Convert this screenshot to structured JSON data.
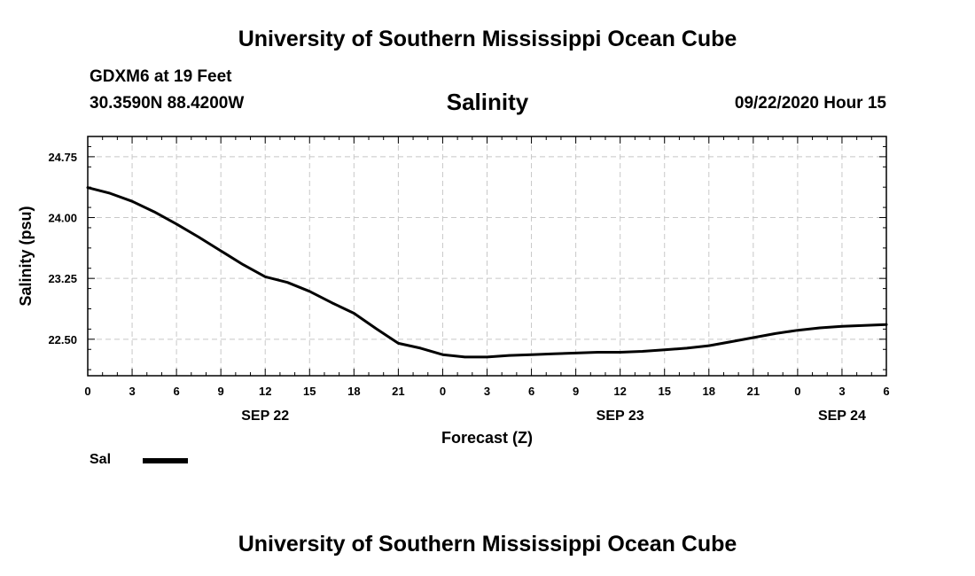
{
  "header": {
    "top_title": "University of Southern Mississippi Ocean Cube",
    "station": "GDXM6 at 19 Feet",
    "coords": "30.3590N 88.4200W",
    "chart_title": "Salinity",
    "timestamp": "09/22/2020 Hour 15"
  },
  "footer": {
    "bottom_title": "University of Southern Mississippi Ocean Cube"
  },
  "legend": {
    "label": "Sal"
  },
  "chart_data": {
    "type": "line",
    "title": "Salinity",
    "xlabel": "Forecast (Z)",
    "ylabel": "Salinity (psu)",
    "x_unit": "forecast hours from 0Z SEP 22",
    "xlim": [
      0,
      54
    ],
    "ylim": [
      22.05,
      25.0
    ],
    "x_ticks": [
      {
        "x": 0,
        "label": "0"
      },
      {
        "x": 3,
        "label": "3"
      },
      {
        "x": 6,
        "label": "6"
      },
      {
        "x": 9,
        "label": "9"
      },
      {
        "x": 12,
        "label": "12"
      },
      {
        "x": 15,
        "label": "15"
      },
      {
        "x": 18,
        "label": "18"
      },
      {
        "x": 21,
        "label": "21"
      },
      {
        "x": 24,
        "label": "0"
      },
      {
        "x": 27,
        "label": "3"
      },
      {
        "x": 30,
        "label": "6"
      },
      {
        "x": 33,
        "label": "9"
      },
      {
        "x": 36,
        "label": "12"
      },
      {
        "x": 39,
        "label": "15"
      },
      {
        "x": 42,
        "label": "18"
      },
      {
        "x": 45,
        "label": "21"
      },
      {
        "x": 48,
        "label": "0"
      },
      {
        "x": 51,
        "label": "3"
      },
      {
        "x": 54,
        "label": "6"
      }
    ],
    "date_labels": [
      {
        "x": 12,
        "label": "SEP 22"
      },
      {
        "x": 36,
        "label": "SEP 23"
      },
      {
        "x": 51,
        "label": "SEP 24"
      }
    ],
    "y_ticks": [
      {
        "y": 22.5,
        "label": "22.50"
      },
      {
        "y": 23.25,
        "label": "23.25"
      },
      {
        "y": 24.0,
        "label": "24.00"
      },
      {
        "y": 24.75,
        "label": "24.75"
      }
    ],
    "grid": true,
    "legend_position": "bottom-left",
    "series": [
      {
        "name": "Sal",
        "color": "#000000",
        "x": [
          0,
          1.5,
          3,
          4.5,
          6,
          7.5,
          9,
          10.5,
          12,
          13.5,
          15,
          16.5,
          18,
          19.5,
          21,
          22.5,
          24,
          25.5,
          27,
          28.5,
          30,
          31.5,
          33,
          34.5,
          36,
          37.5,
          39,
          40.5,
          42,
          43.5,
          45,
          46.5,
          48,
          49.5,
          51,
          52.5,
          54
        ],
        "y": [
          24.37,
          24.3,
          24.2,
          24.07,
          23.92,
          23.76,
          23.59,
          23.42,
          23.27,
          23.2,
          23.09,
          22.95,
          22.82,
          22.63,
          22.45,
          22.39,
          22.31,
          22.28,
          22.28,
          22.3,
          22.31,
          22.32,
          22.33,
          22.34,
          22.34,
          22.35,
          22.37,
          22.39,
          22.42,
          22.47,
          22.52,
          22.57,
          22.61,
          22.64,
          22.66,
          22.67,
          22.68
        ]
      }
    ]
  }
}
